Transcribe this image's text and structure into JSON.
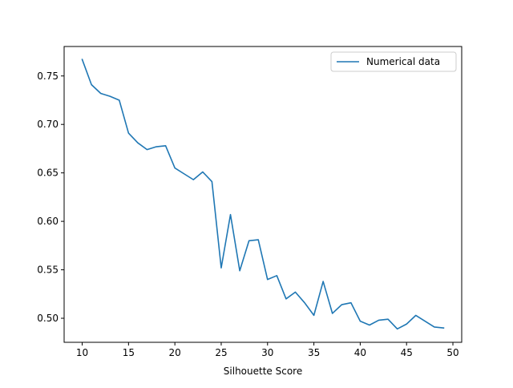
{
  "chart_data": {
    "type": "line",
    "title": "",
    "xlabel": "Silhouette Score",
    "ylabel": "",
    "xlim": [
      8.05,
      50.95
    ],
    "ylim": [
      0.4752,
      0.7804
    ],
    "xticks": [
      10,
      15,
      20,
      25,
      30,
      35,
      40,
      45,
      50
    ],
    "yticks": [
      0.5,
      0.55,
      0.6,
      0.65,
      0.7,
      0.75
    ],
    "grid": false,
    "legend": "upper right",
    "series": [
      {
        "name": "Numerical data",
        "color": "#1f77b4",
        "x": [
          10,
          11,
          12,
          13,
          14,
          15,
          16,
          17,
          18,
          19,
          20,
          21,
          22,
          23,
          24,
          25,
          26,
          27,
          28,
          29,
          30,
          31,
          32,
          33,
          34,
          35,
          36,
          37,
          38,
          39,
          40,
          41,
          42,
          43,
          44,
          45,
          46,
          47,
          48,
          49
        ],
        "y": [
          0.767,
          0.741,
          0.732,
          0.729,
          0.725,
          0.691,
          0.681,
          0.674,
          0.677,
          0.678,
          0.655,
          0.649,
          0.643,
          0.651,
          0.641,
          0.552,
          0.607,
          0.549,
          0.58,
          0.581,
          0.54,
          0.544,
          0.52,
          0.527,
          0.516,
          0.503,
          0.538,
          0.505,
          0.514,
          0.516,
          0.497,
          0.493,
          0.498,
          0.499,
          0.489,
          0.494,
          0.503,
          0.497,
          0.491,
          0.49
        ]
      }
    ]
  }
}
